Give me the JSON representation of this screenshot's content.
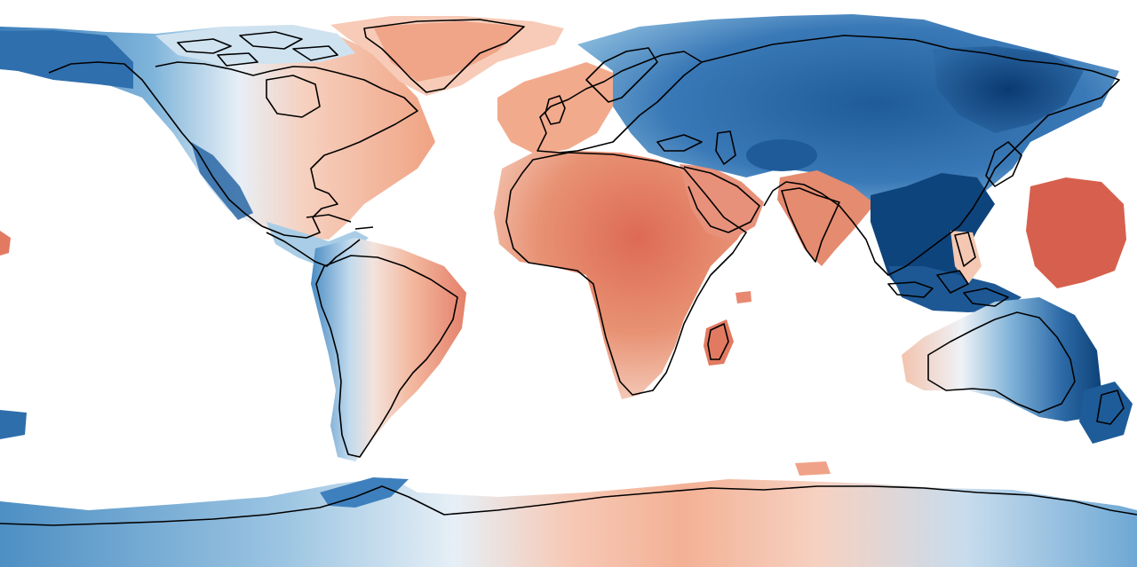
{
  "map": {
    "projection": "equirectangular",
    "coastlines": true,
    "palette": {
      "deep_blue": "#0b3d74",
      "blue": "#2f6fad",
      "mid_blue": "#5b9ccd",
      "light_blue": "#a9cde6",
      "pale_blue": "#dbeaf4",
      "near_white": "#f3f3f3",
      "pale_red": "#f7d3c1",
      "light_red": "#f2a88a",
      "red": "#e4806a",
      "deep_red": "#d6604d"
    },
    "regions": [
      {
        "name": "canada-arctic",
        "sign": "negative"
      },
      {
        "name": "eastern-north-america",
        "sign": "positive"
      },
      {
        "name": "greenland",
        "sign": "positive"
      },
      {
        "name": "western-europe",
        "sign": "positive"
      },
      {
        "name": "africa",
        "sign": "positive"
      },
      {
        "name": "arabia",
        "sign": "positive"
      },
      {
        "name": "india",
        "sign": "positive"
      },
      {
        "name": "madagascar",
        "sign": "positive"
      },
      {
        "name": "eastern-south-america",
        "sign": "positive"
      },
      {
        "name": "western-south-america",
        "sign": "negative"
      },
      {
        "name": "northern-eurasia",
        "sign": "negative"
      },
      {
        "name": "siberia",
        "sign": "negative"
      },
      {
        "name": "east-asia",
        "sign": "negative"
      },
      {
        "name": "maritime-continent",
        "sign": "negative"
      },
      {
        "name": "eastern-australia",
        "sign": "negative"
      },
      {
        "name": "new-zealand",
        "sign": "negative"
      },
      {
        "name": "hawaii-pacific-blob",
        "sign": "positive"
      },
      {
        "name": "east-antarctica",
        "sign": "positive"
      },
      {
        "name": "west-antarctica",
        "sign": "negative"
      }
    ]
  }
}
